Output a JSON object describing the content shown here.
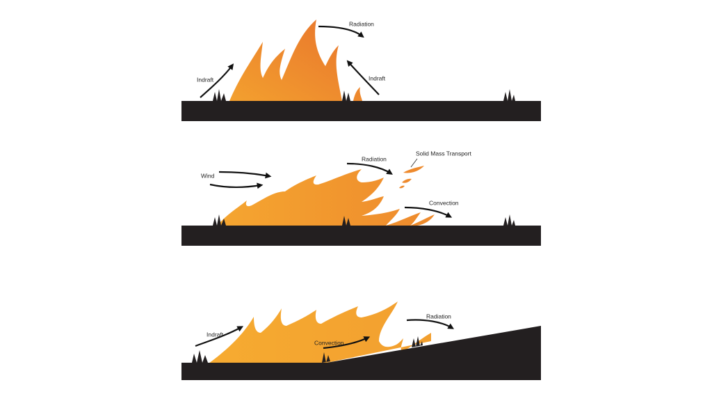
{
  "panels": [
    {
      "labels": [
        "Radiation",
        "Indraft",
        "Indraft"
      ]
    },
    {
      "labels": [
        "Wind",
        "Radiation",
        "Solid Mass Transport",
        "Convection"
      ]
    },
    {
      "labels": [
        "Indraft",
        "Convection",
        "Radiation"
      ]
    }
  ]
}
